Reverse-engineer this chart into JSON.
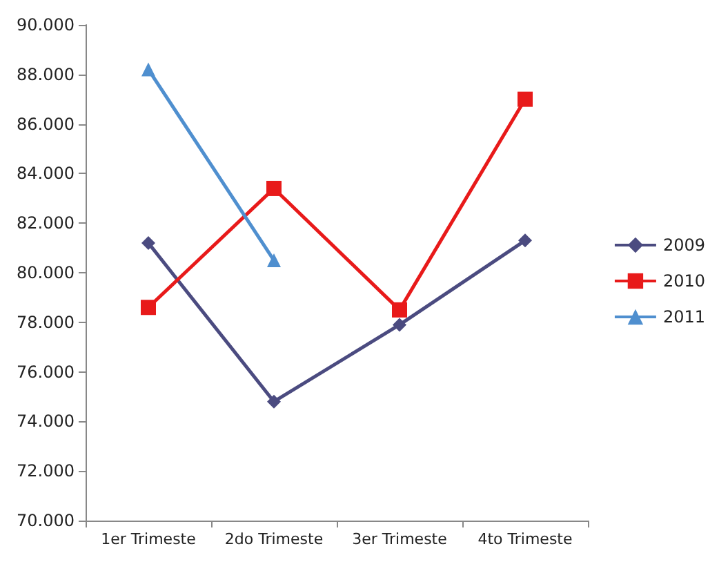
{
  "chart_data": {
    "type": "line",
    "categories": [
      "1er Trimeste",
      "2do Trimeste",
      "3er Trimeste",
      "4to Trimeste"
    ],
    "series": [
      {
        "name": "2009",
        "color": "#4b4b80",
        "marker": "diamond",
        "values": [
          81200,
          74800,
          77900,
          81300
        ]
      },
      {
        "name": "2010",
        "color": "#e81a1a",
        "marker": "square",
        "values": [
          78600,
          83400,
          78500,
          87000
        ]
      },
      {
        "name": "2011",
        "color": "#4f8fcf",
        "marker": "triangle",
        "values": [
          88200,
          80500,
          null,
          null
        ]
      }
    ],
    "ylim": [
      70000,
      90000
    ],
    "yticks": [
      {
        "value": 70000,
        "label": "70.000"
      },
      {
        "value": 72000,
        "label": "72.000"
      },
      {
        "value": 74000,
        "label": "74.000"
      },
      {
        "value": 76000,
        "label": "76.000"
      },
      {
        "value": 78000,
        "label": "78.000"
      },
      {
        "value": 80000,
        "label": "80.000"
      },
      {
        "value": 82000,
        "label": "82.000"
      },
      {
        "value": 84000,
        "label": "84.000"
      },
      {
        "value": 86000,
        "label": "86.000"
      },
      {
        "value": 88000,
        "label": "88.000"
      },
      {
        "value": 90000,
        "label": "90.000"
      }
    ],
    "grid": false,
    "legend": "right"
  }
}
